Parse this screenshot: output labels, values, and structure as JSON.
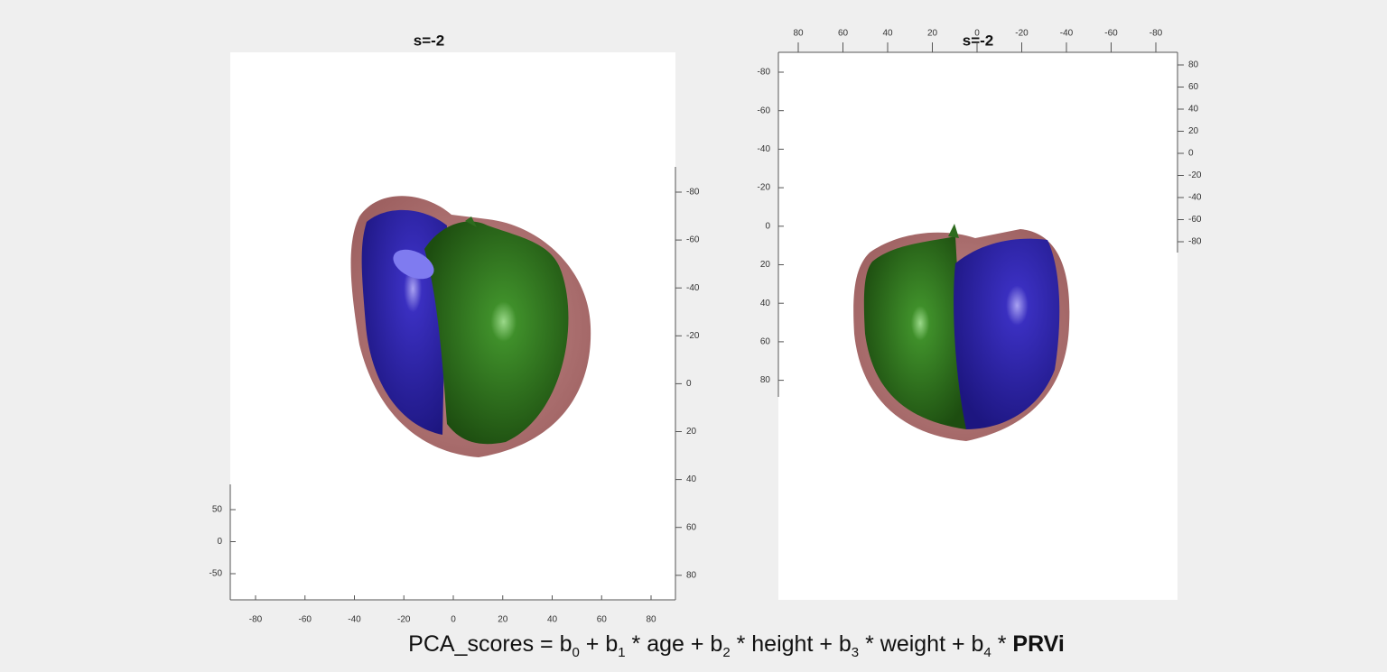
{
  "panels": [
    {
      "title": "s=-2",
      "axes": {
        "bottom": [
          -80,
          -60,
          -40,
          -20,
          0,
          20,
          40,
          60,
          80
        ],
        "left": [
          50,
          0,
          -50
        ],
        "right": [
          -80,
          -60,
          -40,
          -20,
          0,
          20,
          40,
          60,
          80
        ]
      }
    },
    {
      "title": "s=-2",
      "axes": {
        "top": [
          80,
          60,
          40,
          20,
          0,
          -20,
          -40,
          -60,
          -80
        ],
        "left": [
          -80,
          -60,
          -40,
          -20,
          0,
          20,
          40,
          60,
          80
        ],
        "right": [
          80,
          60,
          40,
          20,
          0,
          -20,
          -40,
          -60,
          -80
        ]
      }
    }
  ],
  "formula": {
    "segments": [
      {
        "text": "PCA_scores = b",
        "style": "normal"
      },
      {
        "text": "0",
        "style": "sub"
      },
      {
        "text": " + b",
        "style": "normal"
      },
      {
        "text": "1",
        "style": "sub"
      },
      {
        "text": " * age + b",
        "style": "normal"
      },
      {
        "text": "2",
        "style": "sub"
      },
      {
        "text": " * height + b",
        "style": "normal"
      },
      {
        "text": "3",
        "style": "sub"
      },
      {
        "text": " * weight + b",
        "style": "normal"
      },
      {
        "text": "4",
        "style": "sub"
      },
      {
        "text": " * ",
        "style": "normal"
      },
      {
        "text": "PRVi",
        "style": "bold"
      }
    ]
  }
}
